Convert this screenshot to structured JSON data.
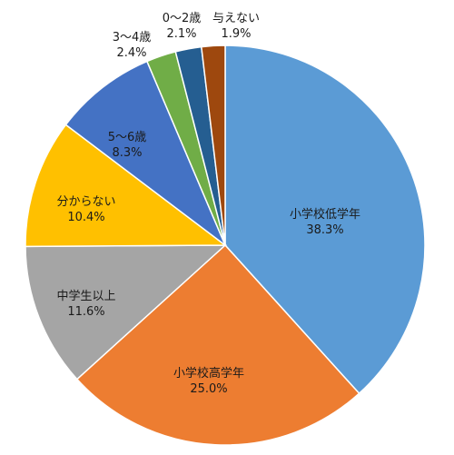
{
  "chart_data": {
    "type": "pie",
    "title": "",
    "slices": [
      {
        "label": "小学校低学年",
        "value": 38.3,
        "value_text": "38.3%",
        "color": "#5B9BD5"
      },
      {
        "label": "小学校高学年",
        "value": 25.0,
        "value_text": "25.0%",
        "color": "#ED7D31"
      },
      {
        "label": "中学生以上",
        "value": 11.6,
        "value_text": "11.6%",
        "color": "#A5A5A5"
      },
      {
        "label": "分からない",
        "value": 10.4,
        "value_text": "10.4%",
        "color": "#FFC000"
      },
      {
        "label": "5～6歳",
        "value": 8.3,
        "value_text": "8.3%",
        "color": "#4472C4"
      },
      {
        "label": "3～4歳",
        "value": 2.4,
        "value_text": "2.4%",
        "color": "#70AD47"
      },
      {
        "label": "0～2歳",
        "value": 2.1,
        "value_text": "2.1%",
        "color": "#255E91"
      },
      {
        "label": "与えない",
        "value": 1.9,
        "value_text": "1.9%",
        "color": "#9E480E"
      }
    ],
    "start_angle": "top (12 o'clock)",
    "direction": "clockwise",
    "legend": "none",
    "data_labels": "category name and percentage"
  }
}
